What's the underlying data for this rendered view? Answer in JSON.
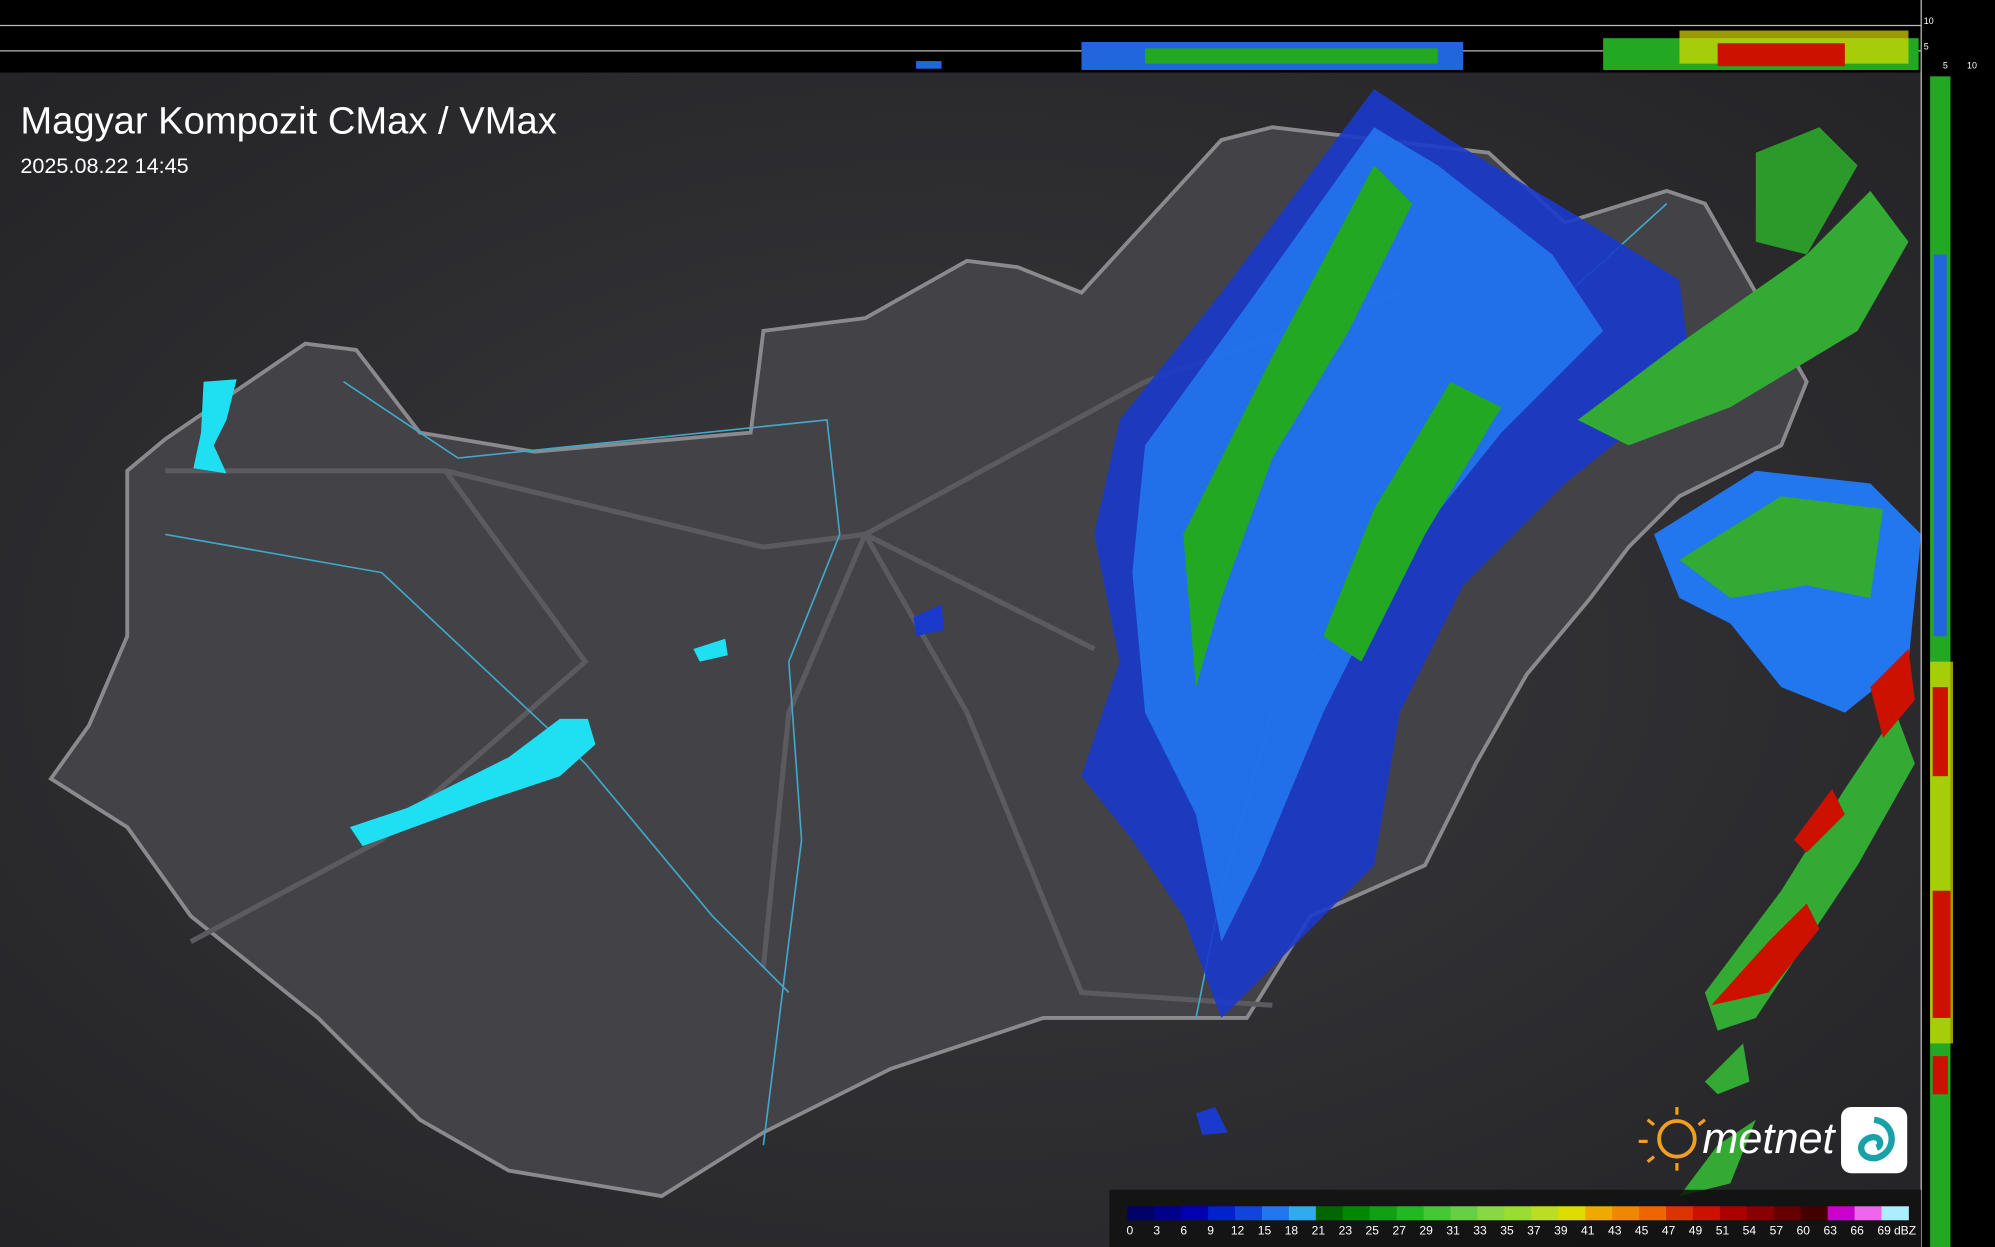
{
  "header": {
    "title": "Magyar Kompozit CMax / VMax",
    "timestamp": "2025.08.22 14:45"
  },
  "profile_axes": {
    "top": [
      "10",
      "5"
    ],
    "right": [
      "5",
      "10"
    ]
  },
  "logo": "metnet",
  "legend": {
    "unit": "dBZ",
    "values": [
      0,
      3,
      6,
      9,
      12,
      15,
      18,
      21,
      23,
      25,
      27,
      29,
      31,
      33,
      35,
      37,
      39,
      41,
      43,
      45,
      47,
      49,
      51,
      54,
      57,
      60,
      63,
      66,
      69
    ],
    "colors": [
      "#000066",
      "#00008b",
      "#0000b0",
      "#0022cc",
      "#1044dd",
      "#2277ee",
      "#33aaee",
      "#006600",
      "#008800",
      "#11a011",
      "#22b822",
      "#44c833",
      "#66d044",
      "#88d844",
      "#99dd33",
      "#bbdd22",
      "#dddd00",
      "#eeaa00",
      "#ee8800",
      "#ee6600",
      "#dd3300",
      "#cc1100",
      "#aa0000",
      "#880000",
      "#660000",
      "#440000",
      "#cc00cc",
      "#ee66ee",
      "#aaeeff"
    ]
  }
}
